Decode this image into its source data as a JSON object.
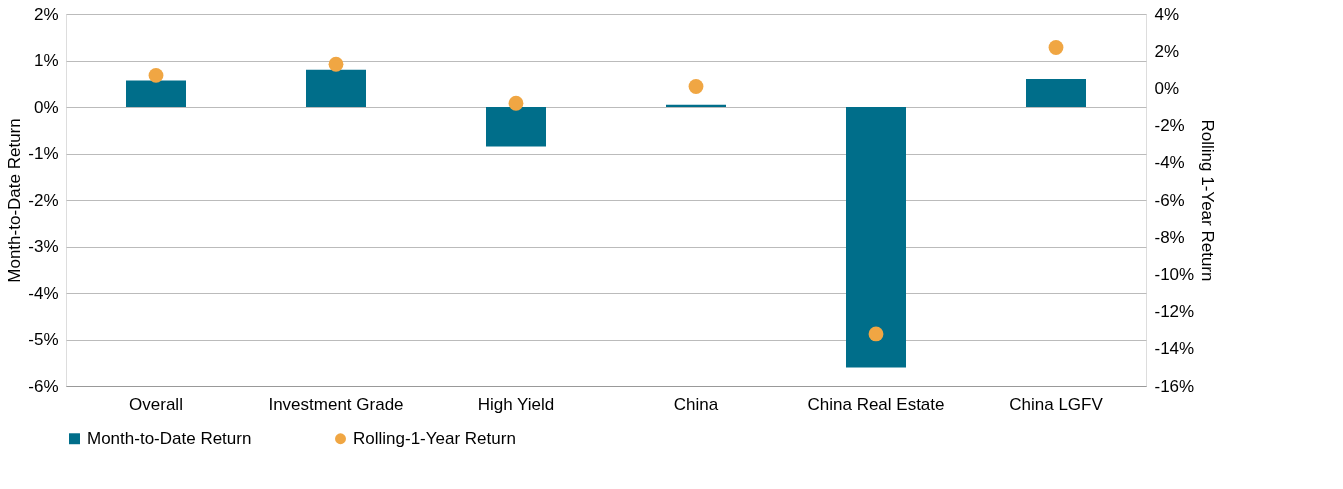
{
  "chart_data": {
    "type": "bar",
    "categories": [
      "Overall",
      "Investment Grade",
      "High Yield",
      "China",
      "China Real Estate",
      "China LGFV"
    ],
    "series": [
      {
        "name": "Month-to-Date Return",
        "color": "#006e8a",
        "values": [
          0.57,
          0.8,
          -0.85,
          0.05,
          -5.6,
          0.6
        ]
      },
      {
        "name": "Rolling-1-Year Return",
        "type": "scatter",
        "axis": "y2",
        "color": "#f0a643",
        "values": [
          0.7,
          1.3,
          -0.8,
          0.1,
          -13.2,
          2.2
        ]
      }
    ],
    "ylabel": "Month-to-Date Return",
    "y2label": "Rolling 1-Year Return",
    "ylim": [
      -6,
      2
    ],
    "yticks": [
      {
        "value": -6,
        "label": "-6%"
      },
      {
        "value": -5,
        "label": "-5%"
      },
      {
        "value": -4,
        "label": "-4%"
      },
      {
        "value": -3,
        "label": "-3%"
      },
      {
        "value": -2,
        "label": "-2%"
      },
      {
        "value": -1,
        "label": "-1%"
      },
      {
        "value": 0,
        "label": "0%"
      },
      {
        "value": 1,
        "label": "1%"
      },
      {
        "value": 2,
        "label": "2%"
      }
    ],
    "y2lim": [
      -16,
      4
    ],
    "y2ticks": [
      {
        "value": -16,
        "label": "-16%"
      },
      {
        "value": -14,
        "label": "-14%"
      },
      {
        "value": -12,
        "label": "-12%"
      },
      {
        "value": -10,
        "label": "-10%"
      },
      {
        "value": -8,
        "label": "-8%"
      },
      {
        "value": -6,
        "label": "-6%"
      },
      {
        "value": -4,
        "label": "-4%"
      },
      {
        "value": -2,
        "label": "-2%"
      },
      {
        "value": 0,
        "label": "0%"
      },
      {
        "value": 2,
        "label": "2%"
      },
      {
        "value": 4,
        "label": "4%"
      }
    ],
    "grid": "y",
    "legend": "bottom",
    "marker": "circle"
  }
}
